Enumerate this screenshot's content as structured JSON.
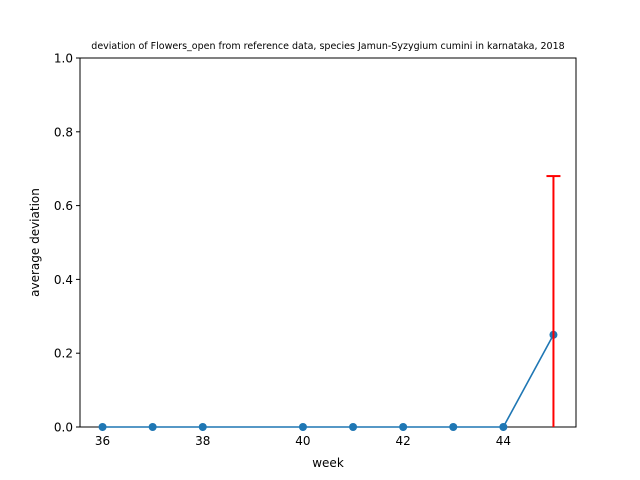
{
  "chart_data": {
    "type": "line",
    "title": "deviation of Flowers_open from reference data, species Jamun-Syzygium cumini in karnataka, 2018",
    "xlabel": "week",
    "ylabel": "average deviation",
    "xlim": [
      35.55,
      45.45
    ],
    "ylim": [
      0,
      1.0
    ],
    "xticks": [
      36,
      38,
      40,
      42,
      44
    ],
    "yticks": [
      0.0,
      0.2,
      0.4,
      0.6,
      0.8,
      1.0
    ],
    "grid": false,
    "series": [
      {
        "x": [
          36,
          37,
          38,
          40,
          41,
          42,
          43,
          44,
          45
        ],
        "y": [
          0,
          0,
          0,
          0,
          0,
          0,
          0,
          0,
          0.25
        ],
        "color": "#1f77b4",
        "marker": "circle"
      }
    ],
    "error_bars": [
      {
        "x": 45,
        "low": 0.25,
        "high": 0.68,
        "color": "#ff0000"
      }
    ]
  }
}
